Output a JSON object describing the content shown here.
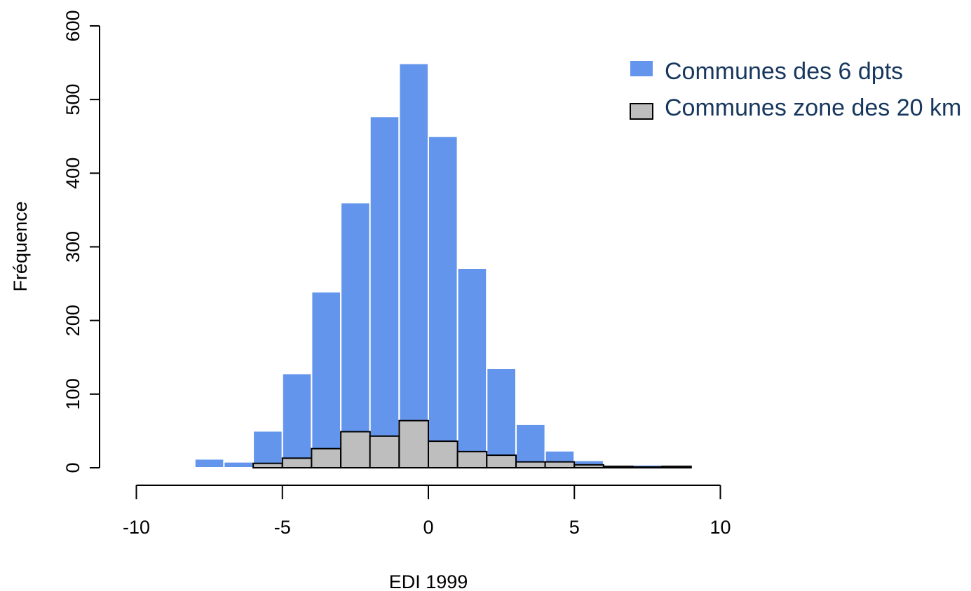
{
  "chart_data": {
    "type": "bar",
    "xlabel": "EDI 1999",
    "ylabel": "Fréquence",
    "xlim": [
      -10,
      10
    ],
    "ylim": [
      0,
      600
    ],
    "x_ticks": [
      "-10",
      "-5",
      "0",
      "5",
      "10"
    ],
    "y_ticks": [
      "0",
      "100",
      "200",
      "300",
      "400",
      "500",
      "600"
    ],
    "grid": false,
    "legend_position": "top-right",
    "bin_edges": [
      -8,
      -7,
      -6,
      -5,
      -4,
      -3,
      -2,
      -1,
      0,
      1,
      2,
      3,
      4,
      5,
      6,
      7,
      8,
      9
    ],
    "series": [
      {
        "name": "Communes des 6 dpts",
        "color": "#6495ed",
        "border": "#ffffff",
        "values": [
          12,
          8,
          50,
          128,
          239,
          360,
          477,
          549,
          450,
          271,
          135,
          59,
          23,
          10,
          2,
          4,
          1
        ]
      },
      {
        "name": "Communes zone des 20 km",
        "color": "#bebebe",
        "border": "#000000",
        "values": [
          0,
          0,
          6,
          13,
          26,
          49,
          43,
          64,
          36,
          22,
          17,
          8,
          8,
          4,
          2,
          1,
          2
        ]
      }
    ]
  }
}
